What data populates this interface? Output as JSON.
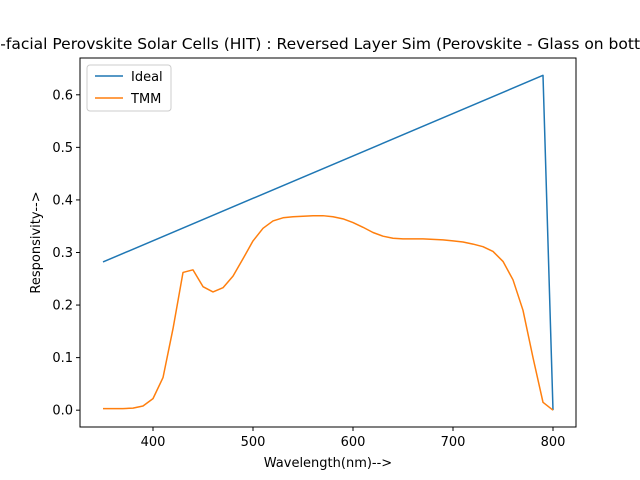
{
  "chart_data": {
    "type": "line",
    "title": "Bi-facial Perovskite Solar Cells (HIT) : Reversed Layer Sim (Perovskite - Glass on bottom)",
    "xlabel": "Wavelength(nm)-->",
    "ylabel": "Responsivity-->",
    "xlim": [
      327,
      823
    ],
    "ylim": [
      -0.032,
      0.67
    ],
    "xticks": [
      400,
      500,
      600,
      700,
      800
    ],
    "yticks": [
      0.0,
      0.1,
      0.2,
      0.3,
      0.4,
      0.5,
      0.6
    ],
    "ytick_labels": [
      "0.0",
      "0.1",
      "0.2",
      "0.3",
      "0.4",
      "0.5",
      "0.6"
    ],
    "grid": false,
    "legend_position": "top-left",
    "series": [
      {
        "name": "Ideal",
        "color": "#1f77b4",
        "x": [
          350,
          790,
          800
        ],
        "y": [
          0.282,
          0.637,
          0.0
        ]
      },
      {
        "name": "TMM",
        "color": "#ff7f0e",
        "x": [
          350,
          360,
          370,
          380,
          390,
          400,
          410,
          420,
          430,
          440,
          450,
          460,
          470,
          480,
          490,
          500,
          510,
          520,
          530,
          540,
          550,
          560,
          570,
          580,
          590,
          600,
          610,
          620,
          630,
          640,
          650,
          660,
          670,
          680,
          690,
          700,
          710,
          720,
          730,
          740,
          750,
          760,
          770,
          780,
          790,
          800
        ],
        "y": [
          0.003,
          0.003,
          0.003,
          0.004,
          0.008,
          0.022,
          0.062,
          0.155,
          0.262,
          0.267,
          0.235,
          0.225,
          0.233,
          0.255,
          0.288,
          0.322,
          0.346,
          0.36,
          0.366,
          0.368,
          0.369,
          0.37,
          0.37,
          0.368,
          0.364,
          0.357,
          0.348,
          0.338,
          0.331,
          0.327,
          0.326,
          0.326,
          0.326,
          0.325,
          0.324,
          0.322,
          0.32,
          0.316,
          0.311,
          0.302,
          0.283,
          0.248,
          0.19,
          0.1,
          0.015,
          0.0
        ]
      }
    ]
  }
}
